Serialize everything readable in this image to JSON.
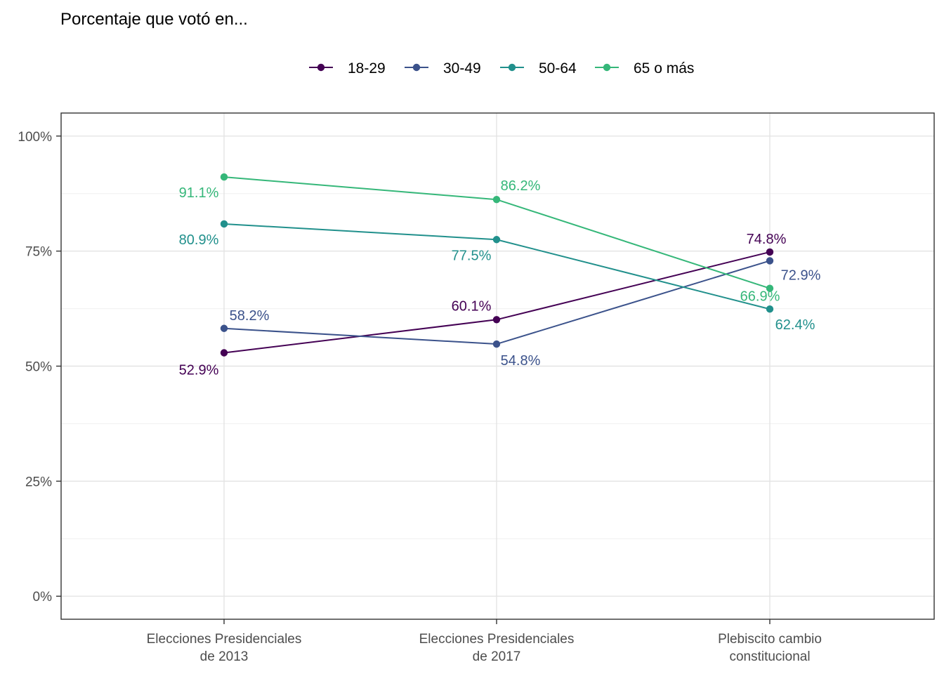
{
  "chart_data": {
    "type": "line",
    "title": "Porcentaje que votó en...",
    "xlabel": "",
    "ylabel": "",
    "categories": [
      "Elecciones Presidenciales\nde 2013",
      "Elecciones Presidenciales\nde 2017",
      "Plebiscito cambio\nconstitucional"
    ],
    "ylim": [
      -0.05,
      1.05
    ],
    "yticks": [
      0,
      0.25,
      0.5,
      0.75,
      1.0
    ],
    "ytick_labels": [
      "0%",
      "25%",
      "50%",
      "75%",
      "100%"
    ],
    "grid": true,
    "legend_position": "top",
    "series": [
      {
        "name": "18-29",
        "color": "#440154",
        "values": [
          0.529,
          0.601,
          0.748
        ],
        "labels": [
          "52.9%",
          "60.1%",
          "74.8%"
        ]
      },
      {
        "name": "30-49",
        "color": "#3B528B",
        "values": [
          0.582,
          0.548,
          0.729
        ],
        "labels": [
          "58.2%",
          "54.8%",
          "72.9%"
        ]
      },
      {
        "name": "50-64",
        "color": "#21908C",
        "values": [
          0.809,
          0.775,
          0.624
        ],
        "labels": [
          "80.9%",
          "77.5%",
          "62.4%"
        ]
      },
      {
        "name": "65 o más",
        "color": "#35B779",
        "values": [
          0.911,
          0.862,
          0.669
        ],
        "labels": [
          "91.1%",
          "86.2%",
          "66.9%"
        ]
      }
    ]
  }
}
